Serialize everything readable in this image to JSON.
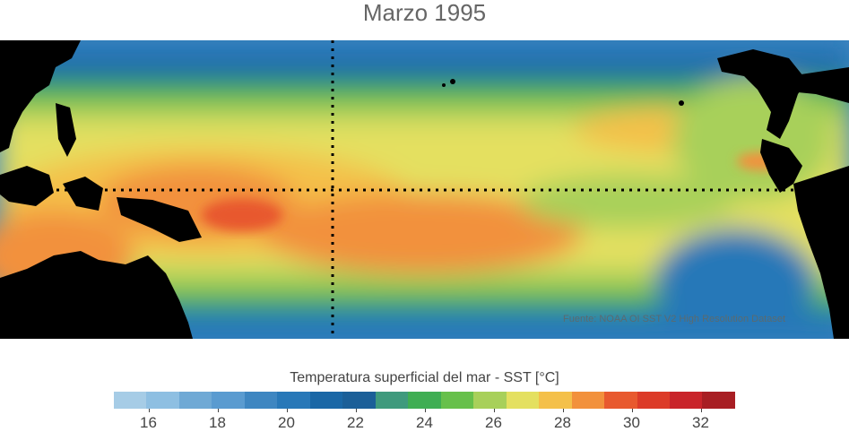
{
  "title": "Marzo 1995",
  "map": {
    "credit": "Fuente: NOAA OI SST V2 High Resolution Dataset",
    "land_color": "#000000",
    "graticule_color": "#000000"
  },
  "colorbar": {
    "title": "Temperatura superficial del mar - SST  [°C]",
    "min": 15,
    "max": 33,
    "colors": [
      "#a6cce6",
      "#8ebfe2",
      "#6fa9d5",
      "#5a9bd0",
      "#3e86c1",
      "#2878b8",
      "#1a67a6",
      "#1b5f98",
      "#3f9a7d",
      "#3fae53",
      "#67c04b",
      "#a8d05a",
      "#e4e060",
      "#f4c04a",
      "#f2913c",
      "#e8592e",
      "#dc3b28",
      "#c9242a",
      "#a81e23"
    ],
    "tick_labels": [
      "16",
      "18",
      "20",
      "22",
      "24",
      "26",
      "28",
      "30",
      "32"
    ],
    "tick_values": [
      16,
      18,
      20,
      22,
      24,
      26,
      28,
      30,
      32
    ]
  }
}
